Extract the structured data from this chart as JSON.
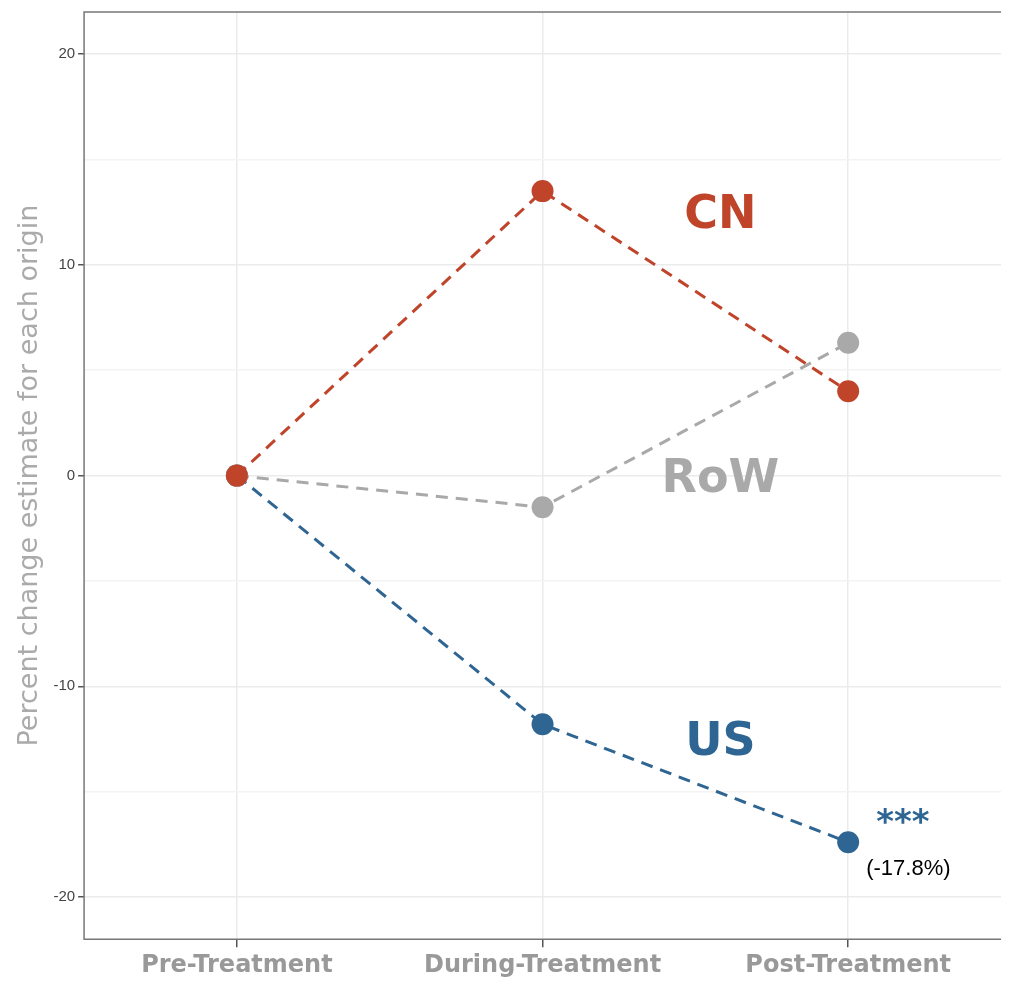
{
  "chart_data": {
    "type": "line",
    "ylabel": "Percent change estimate for each origin",
    "categories": [
      "Pre-Treatment",
      "During-Treatment",
      "Post-Treatment"
    ],
    "series": [
      {
        "name": "CN",
        "color": "#c0442a",
        "values": [
          0,
          13.5,
          4.0
        ]
      },
      {
        "name": "RoW",
        "color": "#a9a9a9",
        "values": [
          0,
          -1.5,
          6.3
        ]
      },
      {
        "name": "US",
        "color": "#2f6592",
        "values": [
          0,
          -11.8,
          -17.4
        ]
      }
    ],
    "ylim": [
      -22,
      22
    ],
    "yticks": [
      -20,
      {
        "value": -15,
        "label": null
      },
      -10,
      {
        "value": -5,
        "label": null
      },
      0,
      {
        "value": 5,
        "label": null
      },
      10,
      {
        "value": 15,
        "label": null
      },
      20
    ],
    "grid": true,
    "legend": false,
    "marker": "circle",
    "line_style": "dashed",
    "annotations": [
      {
        "text": "***",
        "x": "Post-Treatment",
        "y": -17.4
      },
      {
        "text": "(-17.8%)",
        "x": "Post-Treatment",
        "y": -17.4
      }
    ]
  }
}
